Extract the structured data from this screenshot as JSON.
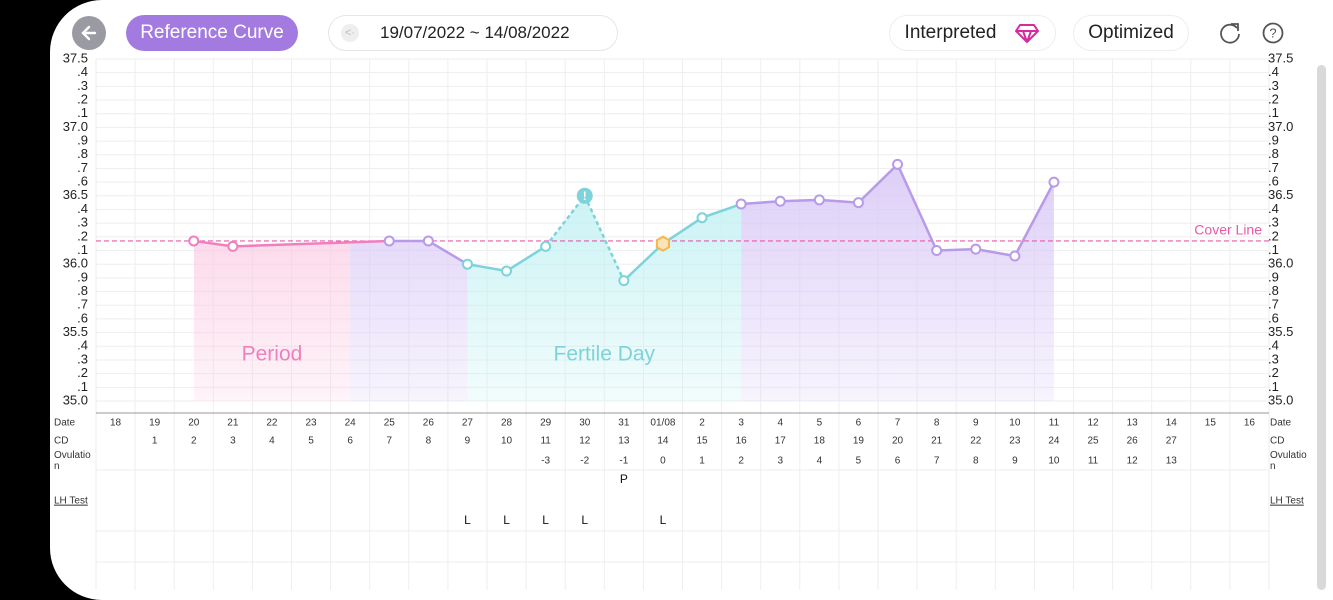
{
  "header": {
    "reference_curve": "Reference Curve",
    "date_range": "19/07/2022 ~ 14/08/2022",
    "interpreted": "Interpreted",
    "optimized": "Optimized"
  },
  "chart_data": {
    "type": "line",
    "categories": [
      "18",
      "19",
      "20",
      "21",
      "22",
      "23",
      "24",
      "25",
      "26",
      "27",
      "28",
      "29",
      "30",
      "31",
      "01/08",
      "2",
      "3",
      "4",
      "5",
      "6",
      "7",
      "8",
      "9",
      "10",
      "11",
      "12",
      "13",
      "14",
      "15",
      "16"
    ],
    "values": [
      null,
      null,
      36.17,
      36.13,
      null,
      null,
      null,
      36.17,
      36.17,
      36.0,
      35.95,
      36.13,
      36.5,
      35.88,
      36.15,
      36.34,
      36.44,
      36.46,
      36.47,
      36.45,
      36.73,
      36.1,
      36.11,
      36.06,
      36.6,
      null,
      null,
      null,
      null,
      null
    ],
    "ylim": [
      35,
      37.5
    ],
    "yticks": [
      {
        "value": 35,
        "label": "35.0"
      },
      {
        "value": 35.1,
        "label": ".1"
      },
      {
        "value": 35.2,
        "label": ".2"
      },
      {
        "value": 35.3,
        "label": ".3"
      },
      {
        "value": 35.4,
        "label": ".4"
      },
      35.5,
      {
        "value": 35.6,
        "label": ".6"
      },
      {
        "value": 35.7,
        "label": ".7"
      },
      {
        "value": 35.8,
        "label": ".8"
      },
      {
        "value": 35.9,
        "label": ".9"
      },
      {
        "value": 36,
        "label": "36.0"
      },
      {
        "value": 36.1,
        "label": ".1"
      },
      {
        "value": 36.2,
        "label": ".2"
      },
      {
        "value": 36.3,
        "label": ".3"
      },
      {
        "value": 36.4,
        "label": ".4"
      },
      36.5,
      {
        "value": 36.6,
        "label": ".6"
      },
      {
        "value": 36.7,
        "label": ".7"
      },
      {
        "value": 36.8,
        "label": ".8"
      },
      {
        "value": 36.9,
        "label": ".9"
      },
      {
        "value": 37,
        "label": "37.0"
      },
      {
        "value": 37.1,
        "label": ".1"
      },
      {
        "value": 37.2,
        "label": ".2"
      },
      {
        "value": 37.3,
        "label": ".3"
      },
      {
        "value": 37.4,
        "label": ".4"
      },
      37.5
    ],
    "grid": true,
    "cover_line": {
      "value": 36.17,
      "label": "Cover Line",
      "color": "#e85aa8"
    },
    "phases": [
      {
        "name": "Period",
        "start": 2,
        "end": 6,
        "color": "#f07fbf",
        "fill": "#fbc9e2"
      },
      {
        "start": 6,
        "end": 9,
        "color": "#b89ae8",
        "fill": "#d9c9f7"
      },
      {
        "name": "Fertile Day",
        "start": 9,
        "end": 16,
        "color": "#7dd3da",
        "fill": "#bff0f2"
      },
      {
        "start": 16,
        "end": 24,
        "color": "#b89ae8",
        "fill": "#d9c9f7"
      }
    ],
    "alert_day": "30",
    "ovulation_day": "01/08",
    "ovulation_color": "#f7b54a",
    "row_labels": {
      "date": "Date",
      "cd": "CD",
      "ovulation": "Ovulation",
      "lh": "LH Test"
    },
    "cd": [
      null,
      1,
      2,
      3,
      4,
      5,
      6,
      7,
      8,
      9,
      10,
      11,
      12,
      13,
      14,
      15,
      16,
      17,
      18,
      19,
      20,
      21,
      22,
      23,
      24,
      25,
      26,
      27,
      null,
      null
    ],
    "ovulation": [
      null,
      null,
      null,
      null,
      null,
      null,
      null,
      null,
      null,
      null,
      null,
      -3,
      -2,
      -1,
      0,
      1,
      2,
      3,
      4,
      5,
      6,
      7,
      8,
      9,
      10,
      11,
      12,
      13,
      null,
      null
    ],
    "lh_upper": [
      null,
      null,
      null,
      null,
      null,
      null,
      null,
      null,
      null,
      null,
      null,
      null,
      null,
      "P",
      null,
      null,
      null,
      null,
      null,
      null,
      null,
      null,
      null,
      null,
      null,
      null,
      null,
      null,
      null,
      null
    ],
    "lh_lower": [
      null,
      null,
      null,
      null,
      null,
      null,
      null,
      null,
      null,
      "L",
      "L",
      "L",
      "L",
      null,
      "L",
      null,
      null,
      null,
      null,
      null,
      null,
      null,
      null,
      null,
      null,
      null,
      null,
      null,
      null,
      null
    ]
  }
}
